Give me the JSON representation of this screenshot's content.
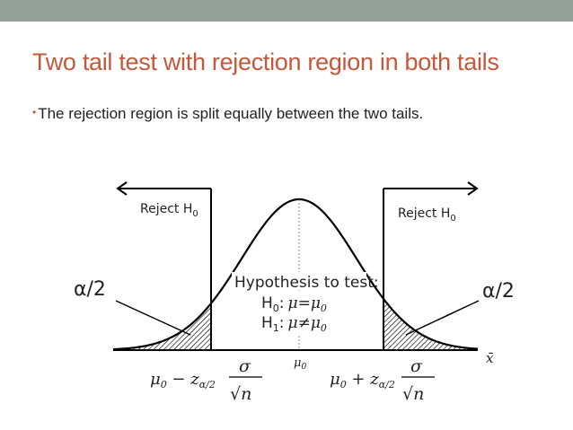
{
  "slide": {
    "title": "Two tail test with rejection region in both tails",
    "bullet_marker": "•",
    "bullet": "The rejection region is split equally between the two tails."
  },
  "diagram": {
    "reject_left": "Reject H",
    "reject_right": "Reject H",
    "reject_sub": "0",
    "alpha_left": "α/2",
    "alpha_right": "α/2",
    "hyp_title": "Hypothesis to test:",
    "h0_label": "H",
    "h0_sub": "0",
    "h0_colon": ":",
    "h0_expr": "μ=μ",
    "h0_expr_sub": "0",
    "h1_label": "H",
    "h1_sub": "1",
    "h1_colon": ":",
    "h1_expr": "μ≠μ",
    "h1_expr_sub": "0",
    "mu0": "μ",
    "mu0_sub": "0",
    "xbar": "x̄",
    "crit_left_mu": "μ",
    "crit_left_mu_sub": "0",
    "crit_left_op": " − ",
    "crit_right_mu": "μ",
    "crit_right_mu_sub": "0",
    "crit_right_op": " + ",
    "z": "z",
    "z_sub": "α/2",
    "sigma": "σ",
    "sqrt_n": "√n"
  },
  "colors": {
    "title": "#c5583b",
    "topbar": "#94a29b",
    "curve": "#000000"
  }
}
